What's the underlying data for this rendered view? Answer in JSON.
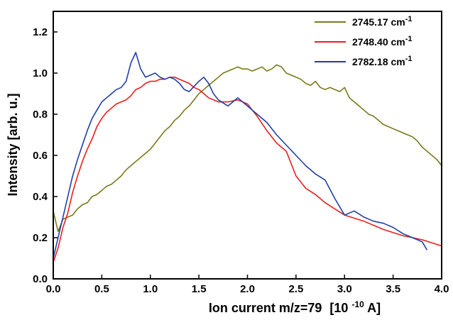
{
  "chart_data": {
    "type": "line",
    "xlabel": "Ion current m/z=79",
    "xlabel_unit_prefix": "[10",
    "xlabel_unit_exp": "-10",
    "xlabel_unit_suffix": " A]",
    "ylabel": "Intensity [arb. u.]",
    "xlim": [
      0.0,
      4.0
    ],
    "ylim": [
      0.0,
      1.3
    ],
    "x_ticks": [
      "0.0",
      "0.5",
      "1.0",
      "1.5",
      "2.0",
      "2.5",
      "3.0",
      "3.5",
      "4.0"
    ],
    "y_ticks": [
      "0.0",
      "0.2",
      "0.4",
      "0.6",
      "0.8",
      "1.0",
      "1.2"
    ],
    "grid": false,
    "legend_position": "top-right",
    "series": [
      {
        "name_prefix": "2745.17 cm",
        "name_exp": "-1",
        "color": "#7a7a1a",
        "points": [
          [
            0.0,
            0.33
          ],
          [
            0.05,
            0.23
          ],
          [
            0.1,
            0.29
          ],
          [
            0.15,
            0.3
          ],
          [
            0.2,
            0.31
          ],
          [
            0.25,
            0.34
          ],
          [
            0.3,
            0.36
          ],
          [
            0.35,
            0.37
          ],
          [
            0.4,
            0.4
          ],
          [
            0.45,
            0.41
          ],
          [
            0.5,
            0.43
          ],
          [
            0.55,
            0.45
          ],
          [
            0.6,
            0.46
          ],
          [
            0.65,
            0.48
          ],
          [
            0.7,
            0.5
          ],
          [
            0.75,
            0.53
          ],
          [
            0.8,
            0.55
          ],
          [
            0.85,
            0.57
          ],
          [
            0.9,
            0.59
          ],
          [
            0.95,
            0.61
          ],
          [
            1.0,
            0.63
          ],
          [
            1.05,
            0.66
          ],
          [
            1.1,
            0.69
          ],
          [
            1.15,
            0.72
          ],
          [
            1.2,
            0.74
          ],
          [
            1.25,
            0.77
          ],
          [
            1.3,
            0.79
          ],
          [
            1.35,
            0.82
          ],
          [
            1.4,
            0.84
          ],
          [
            1.45,
            0.87
          ],
          [
            1.5,
            0.9
          ],
          [
            1.55,
            0.92
          ],
          [
            1.6,
            0.94
          ],
          [
            1.65,
            0.96
          ],
          [
            1.7,
            0.98
          ],
          [
            1.75,
            1.0
          ],
          [
            1.8,
            1.01
          ],
          [
            1.85,
            1.02
          ],
          [
            1.9,
            1.03
          ],
          [
            1.95,
            1.02
          ],
          [
            2.0,
            1.02
          ],
          [
            2.05,
            1.01
          ],
          [
            2.1,
            1.02
          ],
          [
            2.15,
            1.03
          ],
          [
            2.2,
            1.01
          ],
          [
            2.25,
            1.02
          ],
          [
            2.3,
            1.04
          ],
          [
            2.35,
            1.03
          ],
          [
            2.4,
            1.0
          ],
          [
            2.45,
            0.99
          ],
          [
            2.5,
            0.98
          ],
          [
            2.55,
            0.97
          ],
          [
            2.6,
            0.95
          ],
          [
            2.65,
            0.94
          ],
          [
            2.7,
            0.96
          ],
          [
            2.75,
            0.93
          ],
          [
            2.8,
            0.92
          ],
          [
            2.85,
            0.93
          ],
          [
            2.9,
            0.92
          ],
          [
            2.95,
            0.91
          ],
          [
            3.0,
            0.93
          ],
          [
            3.05,
            0.88
          ],
          [
            3.1,
            0.86
          ],
          [
            3.15,
            0.84
          ],
          [
            3.2,
            0.82
          ],
          [
            3.25,
            0.8
          ],
          [
            3.3,
            0.79
          ],
          [
            3.35,
            0.77
          ],
          [
            3.4,
            0.75
          ],
          [
            3.45,
            0.74
          ],
          [
            3.5,
            0.73
          ],
          [
            3.55,
            0.72
          ],
          [
            3.6,
            0.71
          ],
          [
            3.65,
            0.7
          ],
          [
            3.7,
            0.69
          ],
          [
            3.75,
            0.67
          ],
          [
            3.8,
            0.64
          ],
          [
            3.85,
            0.62
          ],
          [
            3.9,
            0.6
          ],
          [
            3.95,
            0.58
          ],
          [
            4.0,
            0.55
          ]
        ]
      },
      {
        "name_prefix": "2748.40 cm",
        "name_exp": "-1",
        "color": "#ee1c1c",
        "points": [
          [
            0.0,
            0.08
          ],
          [
            0.05,
            0.15
          ],
          [
            0.1,
            0.25
          ],
          [
            0.15,
            0.32
          ],
          [
            0.2,
            0.42
          ],
          [
            0.25,
            0.5
          ],
          [
            0.3,
            0.57
          ],
          [
            0.35,
            0.63
          ],
          [
            0.4,
            0.68
          ],
          [
            0.45,
            0.74
          ],
          [
            0.5,
            0.78
          ],
          [
            0.55,
            0.81
          ],
          [
            0.6,
            0.83
          ],
          [
            0.65,
            0.85
          ],
          [
            0.7,
            0.86
          ],
          [
            0.75,
            0.87
          ],
          [
            0.8,
            0.89
          ],
          [
            0.85,
            0.92
          ],
          [
            0.9,
            0.93
          ],
          [
            0.95,
            0.95
          ],
          [
            1.0,
            0.96
          ],
          [
            1.05,
            0.96
          ],
          [
            1.1,
            0.97
          ],
          [
            1.15,
            0.97
          ],
          [
            1.2,
            0.98
          ],
          [
            1.25,
            0.98
          ],
          [
            1.3,
            0.97
          ],
          [
            1.35,
            0.96
          ],
          [
            1.4,
            0.95
          ],
          [
            1.45,
            0.93
          ],
          [
            1.5,
            0.92
          ],
          [
            1.55,
            0.9
          ],
          [
            1.6,
            0.88
          ],
          [
            1.7,
            0.86
          ],
          [
            1.8,
            0.86
          ],
          [
            1.9,
            0.87
          ],
          [
            2.0,
            0.85
          ],
          [
            2.1,
            0.79
          ],
          [
            2.2,
            0.72
          ],
          [
            2.3,
            0.66
          ],
          [
            2.4,
            0.62
          ],
          [
            2.5,
            0.5
          ],
          [
            2.6,
            0.44
          ],
          [
            2.7,
            0.41
          ],
          [
            2.8,
            0.37
          ],
          [
            2.9,
            0.34
          ],
          [
            3.0,
            0.31
          ],
          [
            3.2,
            0.28
          ],
          [
            3.4,
            0.24
          ],
          [
            3.6,
            0.21
          ],
          [
            3.8,
            0.19
          ],
          [
            4.0,
            0.16
          ]
        ]
      },
      {
        "name_prefix": "2782.18 cm",
        "name_exp": "-1",
        "color": "#1f3fa8",
        "points": [
          [
            0.0,
            0.1
          ],
          [
            0.05,
            0.2
          ],
          [
            0.1,
            0.3
          ],
          [
            0.15,
            0.4
          ],
          [
            0.2,
            0.5
          ],
          [
            0.25,
            0.58
          ],
          [
            0.3,
            0.65
          ],
          [
            0.35,
            0.72
          ],
          [
            0.4,
            0.78
          ],
          [
            0.45,
            0.82
          ],
          [
            0.5,
            0.86
          ],
          [
            0.55,
            0.88
          ],
          [
            0.6,
            0.9
          ],
          [
            0.65,
            0.92
          ],
          [
            0.7,
            0.93
          ],
          [
            0.75,
            0.96
          ],
          [
            0.8,
            1.05
          ],
          [
            0.85,
            1.1
          ],
          [
            0.9,
            1.02
          ],
          [
            0.95,
            0.98
          ],
          [
            1.0,
            0.99
          ],
          [
            1.05,
            1.0
          ],
          [
            1.1,
            0.98
          ],
          [
            1.15,
            0.97
          ],
          [
            1.2,
            0.98
          ],
          [
            1.25,
            0.97
          ],
          [
            1.3,
            0.95
          ],
          [
            1.35,
            0.92
          ],
          [
            1.4,
            0.91
          ],
          [
            1.5,
            0.96
          ],
          [
            1.55,
            0.98
          ],
          [
            1.6,
            0.95
          ],
          [
            1.65,
            0.9
          ],
          [
            1.7,
            0.87
          ],
          [
            1.8,
            0.84
          ],
          [
            1.85,
            0.86
          ],
          [
            1.9,
            0.88
          ],
          [
            2.0,
            0.84
          ],
          [
            2.1,
            0.8
          ],
          [
            2.2,
            0.76
          ],
          [
            2.3,
            0.7
          ],
          [
            2.4,
            0.65
          ],
          [
            2.5,
            0.6
          ],
          [
            2.6,
            0.55
          ],
          [
            2.7,
            0.51
          ],
          [
            2.8,
            0.48
          ],
          [
            2.9,
            0.39
          ],
          [
            3.0,
            0.31
          ],
          [
            3.1,
            0.33
          ],
          [
            3.2,
            0.3
          ],
          [
            3.3,
            0.28
          ],
          [
            3.4,
            0.27
          ],
          [
            3.5,
            0.25
          ],
          [
            3.6,
            0.22
          ],
          [
            3.7,
            0.2
          ],
          [
            3.8,
            0.18
          ],
          [
            3.85,
            0.14
          ]
        ]
      }
    ]
  }
}
